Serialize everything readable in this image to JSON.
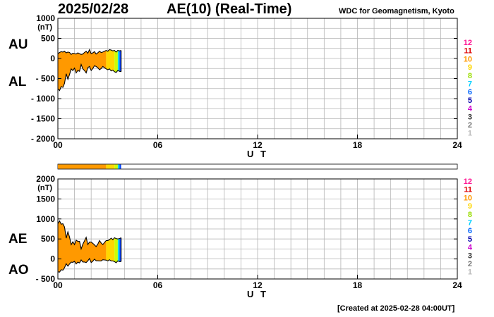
{
  "header": {
    "date": "2025/02/28",
    "title": "AE(10) (Real-Time)",
    "credit": "WDC for Geomagnetism, Kyoto"
  },
  "footer": {
    "created": "[Created at 2025-02-28 04:00UT]"
  },
  "colors": {
    "axis": "#000000",
    "grid": "#b4b4b4",
    "fill_main": "#ff9900",
    "fill_10": "#ffd700",
    "fill_9": "#ccff00",
    "fill_8": "#00d0ff",
    "fill_7": "#0040ff",
    "fill_6": "#000080"
  },
  "station_count_legend": [
    {
      "label": "12",
      "color": "#ff1493"
    },
    {
      "label": "11",
      "color": "#dd0000"
    },
    {
      "label": "10",
      "color": "#ff9900"
    },
    {
      "label": "9",
      "color": "#ffd700"
    },
    {
      "label": "8",
      "color": "#99dd00"
    },
    {
      "label": "7",
      "color": "#00d0ff"
    },
    {
      "label": "6",
      "color": "#0066ff"
    },
    {
      "label": "5",
      "color": "#0000aa"
    },
    {
      "label": "4",
      "color": "#cc00cc"
    },
    {
      "label": "3",
      "color": "#333333"
    },
    {
      "label": "2",
      "color": "#777777"
    },
    {
      "label": "1",
      "color": "#bbbbbb"
    }
  ],
  "chart_data": [
    {
      "type": "area",
      "panel": "AU/AL",
      "xlabel": "U T",
      "ylabel": "(nT)",
      "xlim": [
        0,
        24
      ],
      "ylim": [
        -2000,
        1000
      ],
      "xticks": [
        "00",
        "06",
        "12",
        "18",
        "24"
      ],
      "yticks": [
        "1000",
        "500",
        "0",
        "- 500",
        "- 1000",
        "- 1500",
        "- 2000"
      ],
      "ytick_values": [
        1000,
        500,
        0,
        -500,
        -1000,
        -1500,
        -2000
      ],
      "series_labels": [
        "AU",
        "AL"
      ],
      "time_hours": [
        0.0,
        0.1,
        0.2,
        0.3,
        0.4,
        0.5,
        0.6,
        0.7,
        0.8,
        0.9,
        1.0,
        1.1,
        1.2,
        1.3,
        1.4,
        1.5,
        1.6,
        1.7,
        1.8,
        1.9,
        2.0,
        2.1,
        2.2,
        2.3,
        2.4,
        2.5,
        2.6,
        2.7,
        2.8,
        2.9,
        3.0,
        3.1,
        3.2,
        3.3,
        3.4,
        3.5,
        3.6,
        3.7,
        3.8
      ],
      "au": [
        120,
        150,
        170,
        160,
        180,
        140,
        160,
        150,
        100,
        130,
        120,
        110,
        140,
        120,
        100,
        110,
        150,
        180,
        130,
        220,
        120,
        140,
        170,
        110,
        140,
        180,
        150,
        160,
        180,
        200,
        180,
        220,
        210,
        190,
        200,
        160,
        200,
        190,
        200
      ],
      "al": [
        -750,
        -800,
        -700,
        -720,
        -620,
        -380,
        -520,
        -400,
        -260,
        -300,
        -240,
        -360,
        -300,
        -320,
        -150,
        -260,
        -300,
        -360,
        -230,
        -200,
        -300,
        -250,
        -180,
        -200,
        -230,
        -280,
        -250,
        -200,
        -230,
        -260,
        -280,
        -260,
        -310,
        -290,
        -330,
        -350,
        -300,
        -320,
        -330
      ],
      "count_segments": [
        {
          "from": 0.0,
          "to": 2.9,
          "stations": "10"
        },
        {
          "from": 2.9,
          "to": 3.4,
          "stations": "9"
        },
        {
          "from": 3.4,
          "to": 3.6,
          "stations": "8"
        },
        {
          "from": 3.6,
          "to": 3.7,
          "stations": "7"
        },
        {
          "from": 3.7,
          "to": 3.8,
          "stations": "6"
        }
      ]
    },
    {
      "type": "area",
      "panel": "AE/AO",
      "xlabel": "U T",
      "ylabel": "(nT)",
      "xlim": [
        0,
        24
      ],
      "ylim": [
        -500,
        2000
      ],
      "xticks": [
        "00",
        "06",
        "12",
        "18",
        "24"
      ],
      "yticks": [
        "2000",
        "1500",
        "1000",
        "500",
        "0",
        "- 500"
      ],
      "ytick_values": [
        2000,
        1500,
        1000,
        500,
        0,
        -500
      ],
      "series_labels": [
        "AE",
        "AO"
      ],
      "time_hours": [
        0.0,
        0.1,
        0.2,
        0.3,
        0.4,
        0.5,
        0.6,
        0.7,
        0.8,
        0.9,
        1.0,
        1.1,
        1.2,
        1.3,
        1.4,
        1.5,
        1.6,
        1.7,
        1.8,
        1.9,
        2.0,
        2.1,
        2.2,
        2.3,
        2.4,
        2.5,
        2.6,
        2.7,
        2.8,
        2.9,
        3.0,
        3.1,
        3.2,
        3.3,
        3.4,
        3.5,
        3.6,
        3.7,
        3.8
      ],
      "ae": [
        880,
        950,
        870,
        880,
        800,
        520,
        680,
        550,
        360,
        430,
        360,
        470,
        440,
        440,
        250,
        370,
        450,
        540,
        360,
        420,
        420,
        390,
        350,
        310,
        370,
        460,
        400,
        360,
        410,
        460,
        460,
        480,
        520,
        480,
        530,
        510,
        500,
        510,
        530
      ],
      "ao": [
        -320,
        -330,
        -270,
        -280,
        -220,
        -120,
        -180,
        -125,
        -80,
        -85,
        -60,
        -125,
        -80,
        -100,
        -25,
        -75,
        -75,
        -90,
        -50,
        10,
        -90,
        -55,
        -5,
        -45,
        -45,
        -50,
        -50,
        -20,
        -25,
        -30,
        -50,
        -20,
        -50,
        -50,
        -65,
        -95,
        -50,
        -65,
        -65
      ],
      "count_segments": [
        {
          "from": 0.0,
          "to": 2.9,
          "stations": "10"
        },
        {
          "from": 2.9,
          "to": 3.4,
          "stations": "9"
        },
        {
          "from": 3.4,
          "to": 3.6,
          "stations": "8"
        },
        {
          "from": 3.6,
          "to": 3.7,
          "stations": "7"
        },
        {
          "from": 3.7,
          "to": 3.8,
          "stations": "6"
        }
      ]
    }
  ]
}
